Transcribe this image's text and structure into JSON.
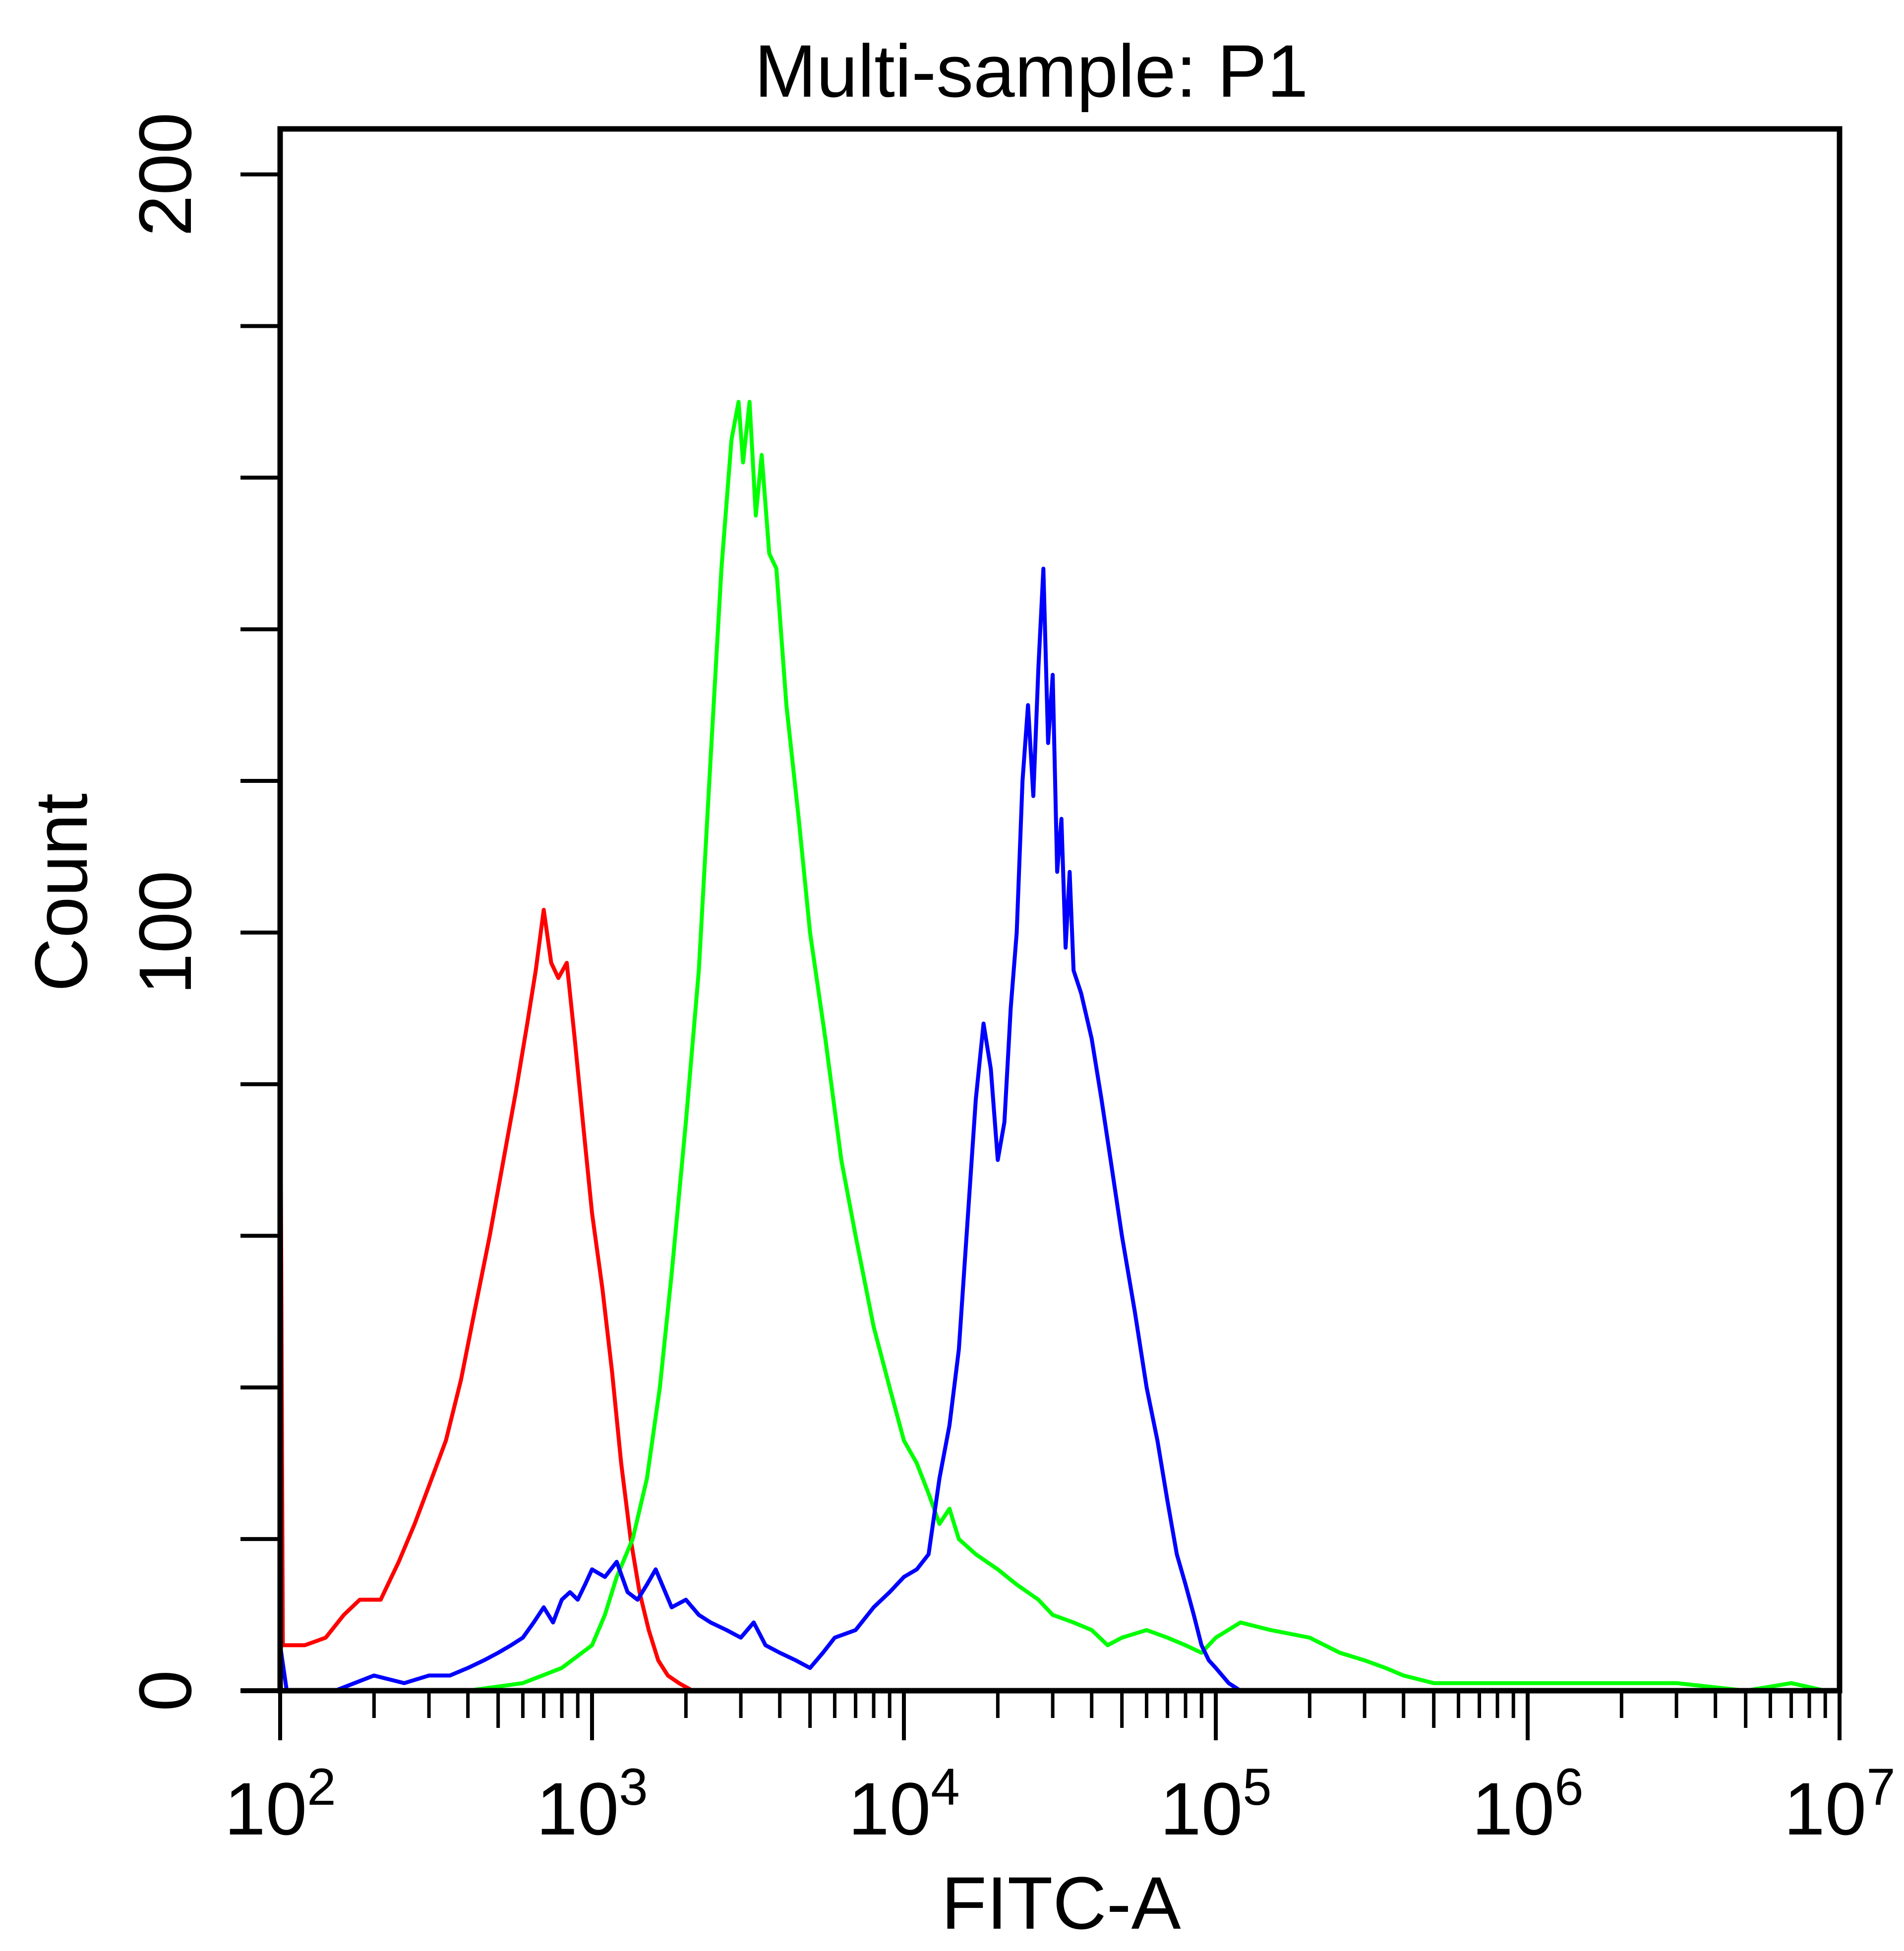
{
  "chart_data": {
    "type": "line",
    "title": "Multi-sample: P1",
    "xlabel": "FITC-A",
    "ylabel": "Count",
    "xscale": "log10",
    "xlim": [
      100,
      10000000
    ],
    "ylim": [
      0,
      206
    ],
    "x_major_ticks": [
      {
        "base": "10",
        "exp": "2",
        "value": 100
      },
      {
        "base": "10",
        "exp": "3",
        "value": 1000
      },
      {
        "base": "10",
        "exp": "4",
        "value": 10000
      },
      {
        "base": "10",
        "exp": "5",
        "value": 100000
      },
      {
        "base": "10",
        "exp": "6",
        "value": 1000000
      },
      {
        "base": "10",
        "exp": "7",
        "value": 10000000
      }
    ],
    "y_tick_values": [
      0,
      20,
      40,
      60,
      80,
      100,
      120,
      140,
      160,
      180,
      200
    ],
    "y_tick_labels": [
      {
        "value": 0,
        "label": "0"
      },
      {
        "value": 100,
        "label": "100"
      },
      {
        "value": 200,
        "label": "200"
      }
    ],
    "grid": false,
    "legend": "none",
    "series": [
      {
        "name": "red",
        "color": "#ff0000",
        "points": [
          [
            100,
            90
          ],
          [
            102,
            6
          ],
          [
            120,
            6
          ],
          [
            140,
            7
          ],
          [
            160,
            10
          ],
          [
            180,
            12
          ],
          [
            210,
            12
          ],
          [
            240,
            17
          ],
          [
            270,
            22
          ],
          [
            300,
            27
          ],
          [
            340,
            33
          ],
          [
            380,
            41
          ],
          [
            420,
            50
          ],
          [
            470,
            60
          ],
          [
            520,
            70
          ],
          [
            570,
            79
          ],
          [
            620,
            88
          ],
          [
            660,
            95
          ],
          [
            700,
            103
          ],
          [
            740,
            96
          ],
          [
            780,
            94
          ],
          [
            830,
            96
          ],
          [
            880,
            86
          ],
          [
            940,
            74
          ],
          [
            1000,
            63
          ],
          [
            1080,
            53
          ],
          [
            1160,
            42
          ],
          [
            1240,
            30
          ],
          [
            1330,
            20
          ],
          [
            1420,
            13
          ],
          [
            1520,
            8
          ],
          [
            1630,
            4
          ],
          [
            1750,
            2
          ],
          [
            1900,
            1
          ],
          [
            2100,
            0
          ],
          [
            2600,
            0
          ],
          [
            3000,
            0
          ]
        ]
      },
      {
        "name": "green",
        "color": "#00ff00",
        "points": [
          [
            400,
            0
          ],
          [
            600,
            1
          ],
          [
            800,
            3
          ],
          [
            1000,
            6
          ],
          [
            1100,
            10
          ],
          [
            1200,
            15
          ],
          [
            1350,
            20
          ],
          [
            1500,
            28
          ],
          [
            1650,
            40
          ],
          [
            1800,
            55
          ],
          [
            2000,
            75
          ],
          [
            2200,
            95
          ],
          [
            2400,
            123
          ],
          [
            2600,
            148
          ],
          [
            2800,
            165
          ],
          [
            2950,
            170
          ],
          [
            3050,
            162
          ],
          [
            3200,
            170
          ],
          [
            3350,
            155
          ],
          [
            3500,
            163
          ],
          [
            3700,
            150
          ],
          [
            3900,
            148
          ],
          [
            4200,
            130
          ],
          [
            4600,
            115
          ],
          [
            5000,
            100
          ],
          [
            5600,
            86
          ],
          [
            6300,
            70
          ],
          [
            7000,
            60
          ],
          [
            8000,
            48
          ],
          [
            9000,
            40
          ],
          [
            10000,
            33
          ],
          [
            11000,
            30
          ],
          [
            12000,
            26
          ],
          [
            13000,
            22
          ],
          [
            14000,
            24
          ],
          [
            15000,
            20
          ],
          [
            17000,
            18
          ],
          [
            20000,
            16
          ],
          [
            23000,
            14
          ],
          [
            27000,
            12
          ],
          [
            30000,
            10
          ],
          [
            35000,
            9
          ],
          [
            40000,
            8
          ],
          [
            45000,
            6
          ],
          [
            50000,
            7
          ],
          [
            60000,
            8
          ],
          [
            70000,
            7
          ],
          [
            80000,
            6
          ],
          [
            90000,
            5
          ],
          [
            100000,
            7
          ],
          [
            120000,
            9
          ],
          [
            150000,
            8
          ],
          [
            200000,
            7
          ],
          [
            250000,
            5
          ],
          [
            300000,
            4
          ],
          [
            350000,
            3
          ],
          [
            400000,
            2
          ],
          [
            500000,
            1
          ],
          [
            700000,
            1
          ],
          [
            1000000,
            1
          ],
          [
            1500000,
            1
          ],
          [
            2000000,
            1
          ],
          [
            3000000,
            1
          ],
          [
            5000000,
            0
          ],
          [
            7000000,
            1
          ],
          [
            9000000,
            0
          ],
          [
            10000000,
            0
          ]
        ]
      },
      {
        "name": "blue",
        "color": "#0000ff",
        "points": [
          [
            100,
            6
          ],
          [
            105,
            0
          ],
          [
            150,
            0
          ],
          [
            200,
            2
          ],
          [
            250,
            1
          ],
          [
            300,
            2
          ],
          [
            350,
            2
          ],
          [
            400,
            3
          ],
          [
            450,
            4
          ],
          [
            500,
            5
          ],
          [
            550,
            6
          ],
          [
            600,
            7
          ],
          [
            650,
            9
          ],
          [
            700,
            11
          ],
          [
            750,
            9
          ],
          [
            800,
            12
          ],
          [
            850,
            13
          ],
          [
            900,
            12
          ],
          [
            950,
            14
          ],
          [
            1000,
            16
          ],
          [
            1100,
            15
          ],
          [
            1200,
            17
          ],
          [
            1300,
            13
          ],
          [
            1400,
            12
          ],
          [
            1500,
            14
          ],
          [
            1600,
            16
          ],
          [
            1800,
            11
          ],
          [
            2000,
            12
          ],
          [
            2200,
            10
          ],
          [
            2400,
            9
          ],
          [
            2700,
            8
          ],
          [
            3000,
            7
          ],
          [
            3300,
            9
          ],
          [
            3600,
            6
          ],
          [
            4000,
            5
          ],
          [
            4500,
            4
          ],
          [
            5000,
            3
          ],
          [
            5500,
            5
          ],
          [
            6000,
            7
          ],
          [
            7000,
            8
          ],
          [
            8000,
            11
          ],
          [
            9000,
            13
          ],
          [
            10000,
            15
          ],
          [
            11000,
            16
          ],
          [
            12000,
            18
          ],
          [
            13000,
            28
          ],
          [
            14000,
            35
          ],
          [
            15000,
            45
          ],
          [
            16000,
            62
          ],
          [
            17000,
            78
          ],
          [
            18000,
            88
          ],
          [
            19000,
            82
          ],
          [
            20000,
            70
          ],
          [
            21000,
            75
          ],
          [
            22000,
            90
          ],
          [
            23000,
            100
          ],
          [
            24000,
            120
          ],
          [
            25000,
            130
          ],
          [
            26000,
            118
          ],
          [
            27000,
            135
          ],
          [
            28000,
            148
          ],
          [
            29000,
            125
          ],
          [
            30000,
            134
          ],
          [
            31000,
            108
          ],
          [
            32000,
            115
          ],
          [
            33000,
            98
          ],
          [
            34000,
            108
          ],
          [
            35000,
            95
          ],
          [
            37000,
            92
          ],
          [
            40000,
            86
          ],
          [
            43000,
            78
          ],
          [
            46000,
            70
          ],
          [
            50000,
            60
          ],
          [
            55000,
            50
          ],
          [
            60000,
            40
          ],
          [
            65000,
            33
          ],
          [
            70000,
            25
          ],
          [
            75000,
            18
          ],
          [
            80000,
            14
          ],
          [
            85000,
            10
          ],
          [
            90000,
            6
          ],
          [
            95000,
            4
          ],
          [
            100000,
            3
          ],
          [
            110000,
            1
          ],
          [
            120000,
            0
          ]
        ]
      }
    ]
  }
}
